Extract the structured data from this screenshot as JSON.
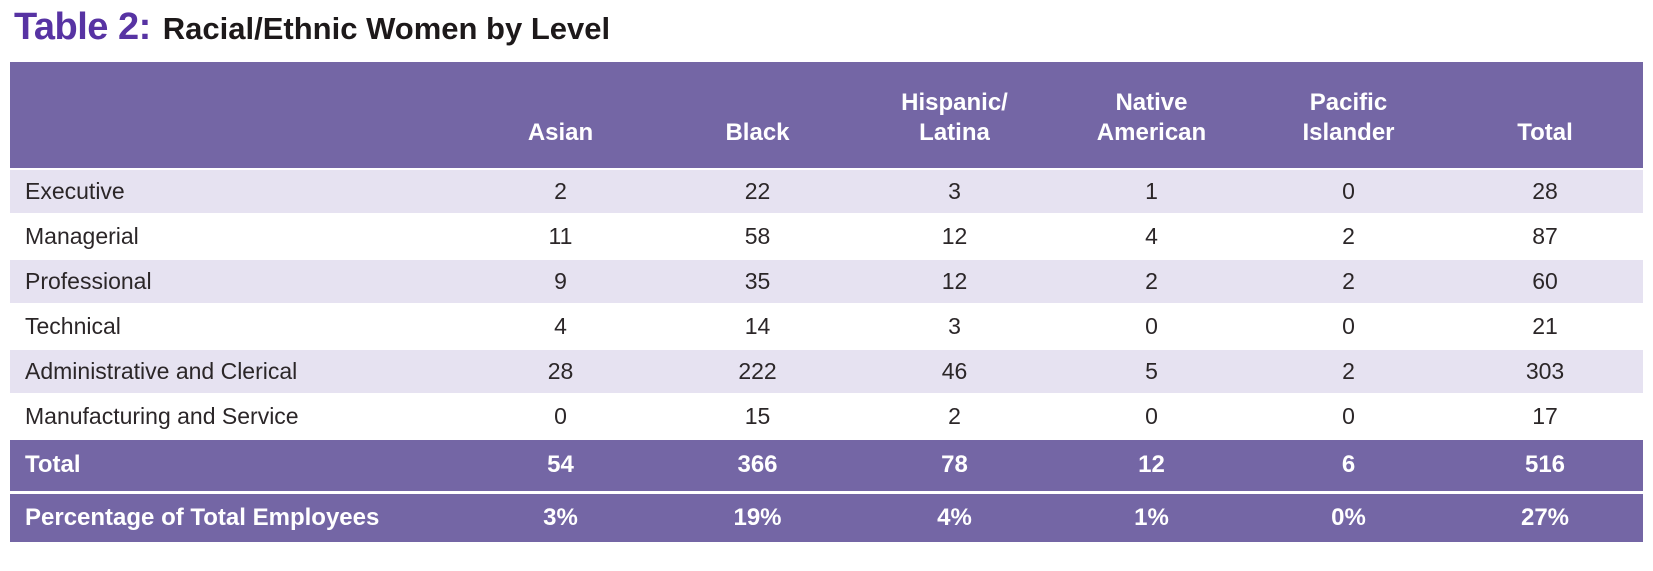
{
  "title": {
    "prefix": "Table 2:",
    "text": "Racial/Ethnic Women by Level"
  },
  "colors": {
    "title_purple": "#5733a3",
    "header_purple": "#7466a5",
    "row_lavender": "#e6e2f1",
    "header_text": "#ffffff",
    "body_text": "#2b2628"
  },
  "table": {
    "columns": [
      {
        "lines": [
          "Asian"
        ]
      },
      {
        "lines": [
          "Black"
        ]
      },
      {
        "lines": [
          "Hispanic/",
          "Latina"
        ]
      },
      {
        "lines": [
          "Native",
          "American"
        ]
      },
      {
        "lines": [
          "Pacific",
          "Islander"
        ]
      },
      {
        "lines": [
          "Total"
        ]
      }
    ],
    "rows": [
      {
        "label": "Executive",
        "values": [
          "2",
          "22",
          "3",
          "1",
          "0",
          "28"
        ]
      },
      {
        "label": "Managerial",
        "values": [
          "11",
          "58",
          "12",
          "4",
          "2",
          "87"
        ]
      },
      {
        "label": "Professional",
        "values": [
          "9",
          "35",
          "12",
          "2",
          "2",
          "60"
        ]
      },
      {
        "label": "Technical",
        "values": [
          "4",
          "14",
          "3",
          "0",
          "0",
          "21"
        ]
      },
      {
        "label": "Administrative and Clerical",
        "values": [
          "28",
          "222",
          "46",
          "5",
          "2",
          "303"
        ]
      },
      {
        "label": "Manufacturing and Service",
        "values": [
          "0",
          "15",
          "2",
          "0",
          "0",
          "17"
        ]
      }
    ],
    "total_row": {
      "label": "Total",
      "values": [
        "54",
        "366",
        "78",
        "12",
        "6",
        "516"
      ]
    },
    "percentage_row": {
      "label": "Percentage of Total Employees",
      "values": [
        "3%",
        "19%",
        "4%",
        "1%",
        "0%",
        "27%"
      ]
    }
  }
}
